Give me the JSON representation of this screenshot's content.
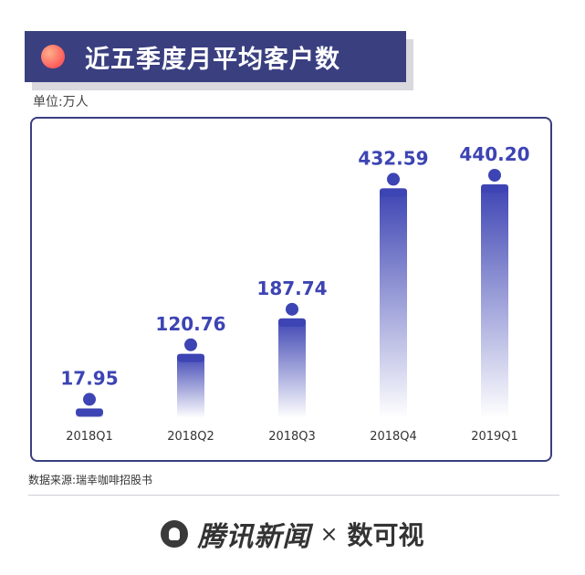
{
  "header": {
    "title": "近五季度月平均客户数"
  },
  "unit_label": "单位:万人",
  "source_label": "数据来源:瑞幸咖啡招股书",
  "footer": {
    "brand": "腾讯新闻",
    "separator": "×",
    "partner": "数可视"
  },
  "colors": {
    "title_bg": "#3a3f80",
    "bar_top": "#3d44b3",
    "bar_bottom": "#ffffff",
    "value_text": "#3d44b3"
  },
  "chart_data": {
    "type": "bar",
    "title": "近五季度月平均客户数",
    "ylabel": "单位:万人",
    "categories": [
      "2018Q1",
      "2018Q2",
      "2018Q3",
      "2018Q4",
      "2019Q1"
    ],
    "values": [
      17.95,
      120.76,
      187.74,
      432.59,
      440.2
    ],
    "value_labels": [
      "17.95",
      "120.76",
      "187.74",
      "432.59",
      "440.20"
    ],
    "ylim": [
      0,
      440.2
    ],
    "grid": false,
    "legend": "none"
  }
}
